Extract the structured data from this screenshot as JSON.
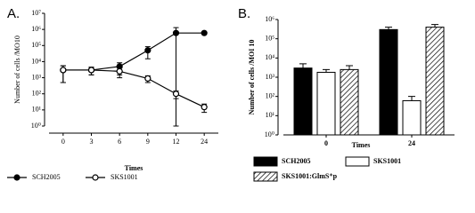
{
  "chart_data": [
    {
      "type": "line",
      "title": "A.",
      "x_label": "Times",
      "y_label": "Number of cells /MO10",
      "categories": [
        "0",
        "3",
        "6",
        "9",
        "12",
        "24"
      ],
      "log_y": true,
      "ylim": [
        1,
        10000000
      ],
      "yticks": [
        {
          "value": 1,
          "label": "10⁰"
        },
        {
          "value": 10,
          "label": "10¹"
        },
        {
          "value": 100,
          "label": "10²"
        },
        {
          "value": 1000,
          "label": "10³"
        },
        {
          "value": 10000,
          "label": "10⁴"
        },
        {
          "value": 100000,
          "label": "10⁵"
        },
        {
          "value": 1000000,
          "label": "10⁶"
        },
        {
          "value": 10000000,
          "label": "10⁷"
        }
      ],
      "series": [
        {
          "name": "SCH2005",
          "color": "#000000",
          "marker_fill": "#000000",
          "values": [
            3000,
            3000,
            5000,
            50000,
            600000,
            600000
          ],
          "errors": [
            2500,
            1500,
            3500,
            35000,
            700000,
            100000
          ]
        },
        {
          "name": "SKS1001",
          "color": "#000000",
          "marker_fill": "#ffffff",
          "values": [
            3000,
            3000,
            2500,
            900,
            100,
            15
          ],
          "errors": [
            2500,
            1500,
            1500,
            400,
            50,
            8
          ]
        }
      ],
      "legend": "bottom"
    },
    {
      "type": "bar",
      "title": "B.",
      "x_label": "Times",
      "y_label": "Number of cells /MOI 10",
      "categories": [
        "0",
        "24"
      ],
      "log_y": true,
      "ylim": [
        1,
        1000000
      ],
      "yticks": [
        {
          "value": 1,
          "label": "10⁰"
        },
        {
          "value": 10,
          "label": "10¹"
        },
        {
          "value": 100,
          "label": "10²"
        },
        {
          "value": 1000,
          "label": "10³"
        },
        {
          "value": 10000,
          "label": "10⁴"
        },
        {
          "value": 100000,
          "label": "10⁵"
        },
        {
          "value": 1000000,
          "label": "10⁶"
        }
      ],
      "series": [
        {
          "name": "SCH2005",
          "color": "#000000",
          "values": [
            3000,
            300000
          ],
          "errors": [
            2000,
            100000
          ]
        },
        {
          "name": "SKS1001",
          "color": "#ffffff",
          "values": [
            1800,
            60
          ],
          "errors": [
            700,
            40
          ]
        },
        {
          "name": "SKS1001:GlmS⁺p",
          "color": "#ffffff",
          "pattern": "hatch",
          "values": [
            2500,
            400000
          ],
          "errors": [
            1500,
            150000
          ]
        }
      ],
      "legend": "bottom"
    }
  ]
}
